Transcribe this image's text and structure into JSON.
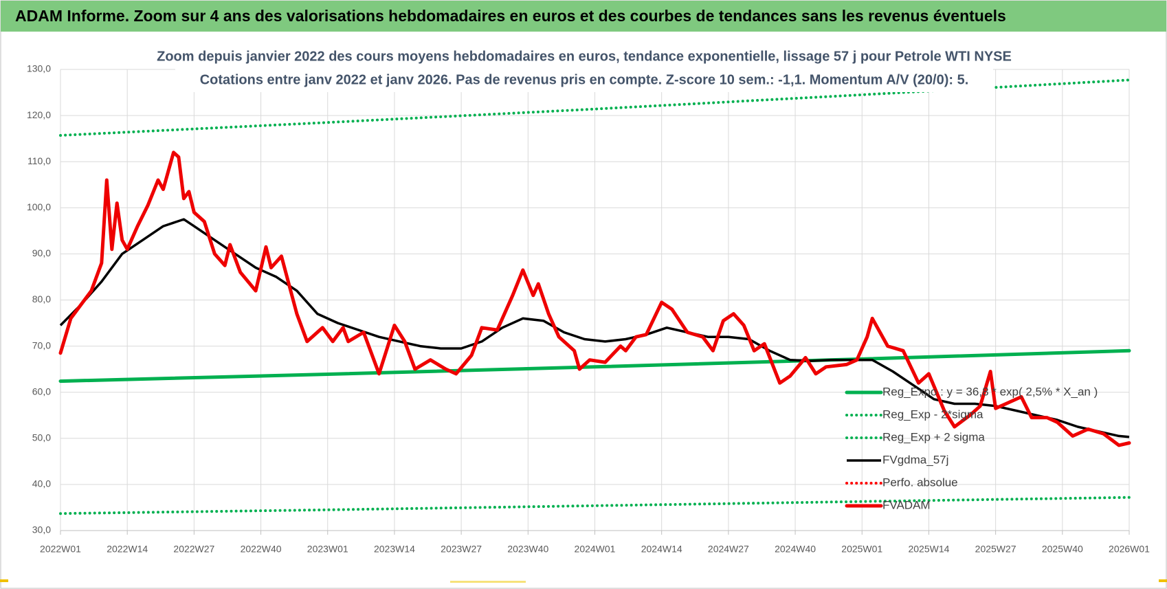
{
  "header": {
    "title": "ADAM Informe. Zoom sur 4 ans des valorisations hebdomadaires en euros et des courbes de tendances sans les revenus éventuels"
  },
  "chart_data": {
    "type": "line",
    "title": "Zoom depuis janvier 2022 des cours moyens hebdomadaires en euros, tendance exponentielle, lissage 57 j pour Petrole WTI NYSE",
    "subtitle": "Cotations entre janv 2022 et janv 2026. Pas de revenus pris en compte. Z-score 10 sem.: -1,1. Momentum A/V (20/0): 5.",
    "xlim": [
      0,
      208
    ],
    "xticks": [
      {
        "value": 0,
        "label": "2022W01"
      },
      {
        "value": 13,
        "label": "2022W14"
      },
      {
        "value": 26,
        "label": "2022W27"
      },
      {
        "value": 39,
        "label": "2022W40"
      },
      {
        "value": 52,
        "label": "2023W01"
      },
      {
        "value": 65,
        "label": "2023W14"
      },
      {
        "value": 78,
        "label": "2023W27"
      },
      {
        "value": 91,
        "label": "2023W40"
      },
      {
        "value": 104,
        "label": "2024W01"
      },
      {
        "value": 117,
        "label": "2024W14"
      },
      {
        "value": 130,
        "label": "2024W27"
      },
      {
        "value": 143,
        "label": "2024W40"
      },
      {
        "value": 156,
        "label": "2025W01"
      },
      {
        "value": 169,
        "label": "2025W14"
      },
      {
        "value": 182,
        "label": "2025W27"
      },
      {
        "value": 195,
        "label": "2025W40"
      },
      {
        "value": 208,
        "label": "2026W01"
      }
    ],
    "ylim": [
      30,
      130
    ],
    "yticks": [
      {
        "value": 30,
        "label": "30,0"
      },
      {
        "value": 40,
        "label": "40,0"
      },
      {
        "value": 50,
        "label": "50,0"
      },
      {
        "value": 60,
        "label": "60,0"
      },
      {
        "value": 70,
        "label": "70,0"
      },
      {
        "value": 80,
        "label": "80,0"
      },
      {
        "value": 90,
        "label": "90,0"
      },
      {
        "value": 100,
        "label": "100,0"
      },
      {
        "value": 110,
        "label": "110,0"
      },
      {
        "value": 120,
        "label": "120,0"
      },
      {
        "value": 130,
        "label": "130,0"
      }
    ],
    "grid": true,
    "legend": "bottom-right",
    "series": [
      {
        "name": "Reg_Expo : y = 36,8 * exp( 2,5% * X_an )",
        "color": "#00b050",
        "line_style": "bold",
        "x": [
          0,
          52,
          104,
          156,
          208
        ],
        "values": [
          62.4,
          63.9,
          65.5,
          67.2,
          69.0
        ]
      },
      {
        "name": "Reg_Exp - 2*sigma",
        "color": "#00b050",
        "line_style": "dotted",
        "x": [
          0,
          52,
          104,
          156,
          208
        ],
        "values": [
          33.7,
          34.5,
          35.4,
          36.3,
          37.2
        ]
      },
      {
        "name": "Reg_Exp + 2 sigma",
        "color": "#00b050",
        "line_style": "dotted",
        "x": [
          0,
          52,
          104,
          156,
          208
        ],
        "values": [
          115.7,
          118.5,
          121.4,
          124.5,
          127.7
        ]
      },
      {
        "name": "FVgdma_57j",
        "color": "#000000",
        "line_style": "solid",
        "x": [
          0,
          4,
          8,
          12,
          16,
          20,
          24,
          26,
          30,
          34,
          38,
          42,
          46,
          50,
          54,
          58,
          62,
          66,
          70,
          74,
          78,
          82,
          86,
          90,
          94,
          98,
          102,
          106,
          110,
          114,
          118,
          122,
          126,
          130,
          134,
          138,
          142,
          146,
          150,
          154,
          158,
          162,
          166,
          170,
          174,
          178,
          182,
          186,
          190,
          194,
          198,
          202,
          206,
          208
        ],
        "values": [
          74.5,
          79,
          84,
          90,
          93,
          96,
          97.5,
          96,
          93,
          90,
          87,
          85,
          82,
          77,
          75,
          73.5,
          72,
          71,
          70,
          69.5,
          69.5,
          71,
          74,
          76,
          75.5,
          73,
          71.5,
          71,
          71.5,
          72.5,
          74,
          73,
          72,
          72,
          71.5,
          69,
          67,
          66.8,
          67,
          67,
          67,
          64.5,
          61.5,
          58.5,
          57.5,
          57.5,
          57,
          56,
          55,
          54,
          52.5,
          51.5,
          50.5,
          50.3
        ]
      },
      {
        "name": "Perfo. absolue",
        "color": "#ff0000",
        "line_style": "dotted",
        "x": [],
        "values": []
      },
      {
        "name": "FVADAM",
        "color": "#ee0000",
        "line_style": "bold",
        "x": [
          0,
          2,
          4,
          6,
          8,
          9,
          10,
          11,
          12,
          13,
          15,
          17,
          19,
          20,
          22,
          23,
          24,
          25,
          26,
          28,
          30,
          32,
          33,
          35,
          38,
          40,
          41,
          43,
          46,
          48,
          51,
          53,
          55,
          56,
          59,
          62,
          65,
          67,
          69,
          72,
          75,
          77,
          80,
          82,
          85,
          88,
          90,
          92,
          93,
          95,
          97,
          100,
          101,
          103,
          106,
          109,
          110,
          112,
          114,
          117,
          119,
          122,
          125,
          127,
          129,
          131,
          133,
          135,
          137,
          140,
          142,
          145,
          147,
          149,
          153,
          155,
          157,
          158,
          161,
          164,
          167,
          169,
          172,
          174,
          177,
          179,
          181,
          182,
          184,
          187,
          189,
          192,
          194,
          197,
          200,
          203,
          206,
          208
        ],
        "values": [
          68.5,
          76,
          79,
          82,
          88,
          106,
          91,
          101,
          93,
          91,
          96,
          100.5,
          106,
          104,
          112,
          111,
          102,
          103.5,
          99,
          97,
          90,
          87.5,
          92,
          86,
          82,
          91.5,
          87,
          89.5,
          77,
          71,
          74,
          71,
          74,
          71,
          73,
          64,
          74.5,
          71,
          65,
          67,
          65,
          64,
          68,
          74,
          73.5,
          81,
          86.5,
          81,
          83.5,
          77,
          72,
          69,
          65,
          67,
          66.5,
          70,
          69,
          72,
          72.5,
          79.5,
          78,
          73,
          72,
          69,
          75.5,
          77,
          74.5,
          69,
          70.5,
          62,
          63.5,
          67.5,
          64,
          65.5,
          66,
          67,
          72,
          76,
          70,
          69,
          62,
          64,
          56,
          52.5,
          55,
          57,
          64.5,
          56.5,
          57.5,
          59,
          54.5,
          54.5,
          53.5,
          50.5,
          52,
          51,
          48.5,
          49
        ]
      }
    ]
  }
}
